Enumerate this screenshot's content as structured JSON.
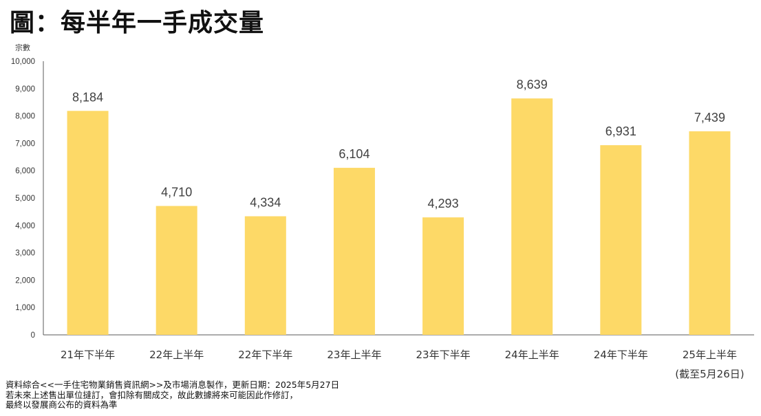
{
  "title": "圖：每半年一手成交量",
  "chart_data": {
    "type": "bar",
    "ylabel": "宗數",
    "xlabel": "",
    "ylim": [
      0,
      10000
    ],
    "yticks": [
      "0",
      "1,000",
      "2,000",
      "3,000",
      "4,000",
      "5,000",
      "6,000",
      "7,000",
      "8,000",
      "9,000",
      "10,000"
    ],
    "categories": [
      "21年下半年",
      "22年上半年",
      "22年下半年",
      "23年上半年",
      "23年下半年",
      "24年上半年",
      "24年下半年",
      "25年上半年"
    ],
    "category_notes": [
      "",
      "",
      "",
      "",
      "",
      "",
      "",
      "(截至5月26日)"
    ],
    "values": [
      8184,
      4710,
      4334,
      6104,
      4293,
      8639,
      6931,
      7439
    ],
    "value_labels": [
      "8,184",
      "4,710",
      "4,334",
      "6,104",
      "4,293",
      "8,639",
      "6,931",
      "7,439"
    ],
    "bar_color": "#FDD967",
    "grid": false,
    "legend": "none"
  },
  "footnote": {
    "line1": "資料綜合<<一手住宅物業銷售資訊網>>及市場消息製作，更新日期：2025年5月27日",
    "line2": "若未來上述售出單位撻訂，會扣除有關成交，故此數據將來可能因此作修訂，",
    "line3": "最終以發展商公布的資料為準"
  }
}
